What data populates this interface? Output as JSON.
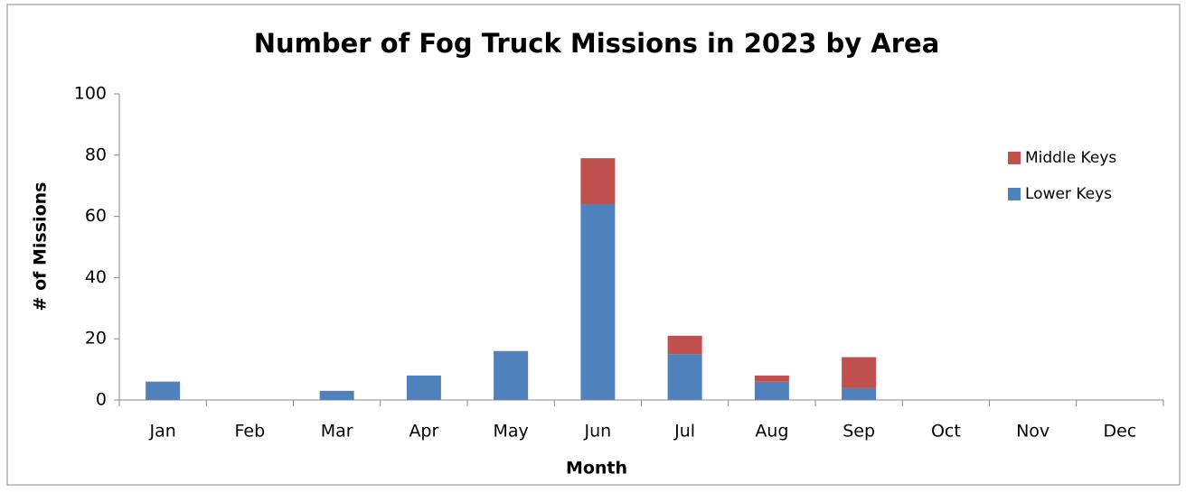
{
  "chart_data": {
    "type": "bar",
    "stacked": true,
    "title": "Number of Fog Truck Missions in 2023 by Area",
    "xlabel": "Month",
    "ylabel": "# of Missions",
    "categories": [
      "Jan",
      "Feb",
      "Mar",
      "Apr",
      "May",
      "Jun",
      "Jul",
      "Aug",
      "Sep",
      "Oct",
      "Nov",
      "Dec"
    ],
    "series": [
      {
        "name": "Lower Keys",
        "color": "#4f81bd",
        "values": [
          6,
          0,
          3,
          8,
          16,
          64,
          15,
          6,
          4,
          0,
          0,
          0
        ]
      },
      {
        "name": "Middle Keys",
        "color": "#c0504d",
        "values": [
          0,
          0,
          0,
          0,
          0,
          15,
          6,
          2,
          10,
          0,
          0,
          0
        ]
      }
    ],
    "ylim": [
      0,
      100
    ],
    "yticks": [
      0,
      20,
      40,
      60,
      80,
      100
    ],
    "grid": false,
    "legend": "right"
  }
}
